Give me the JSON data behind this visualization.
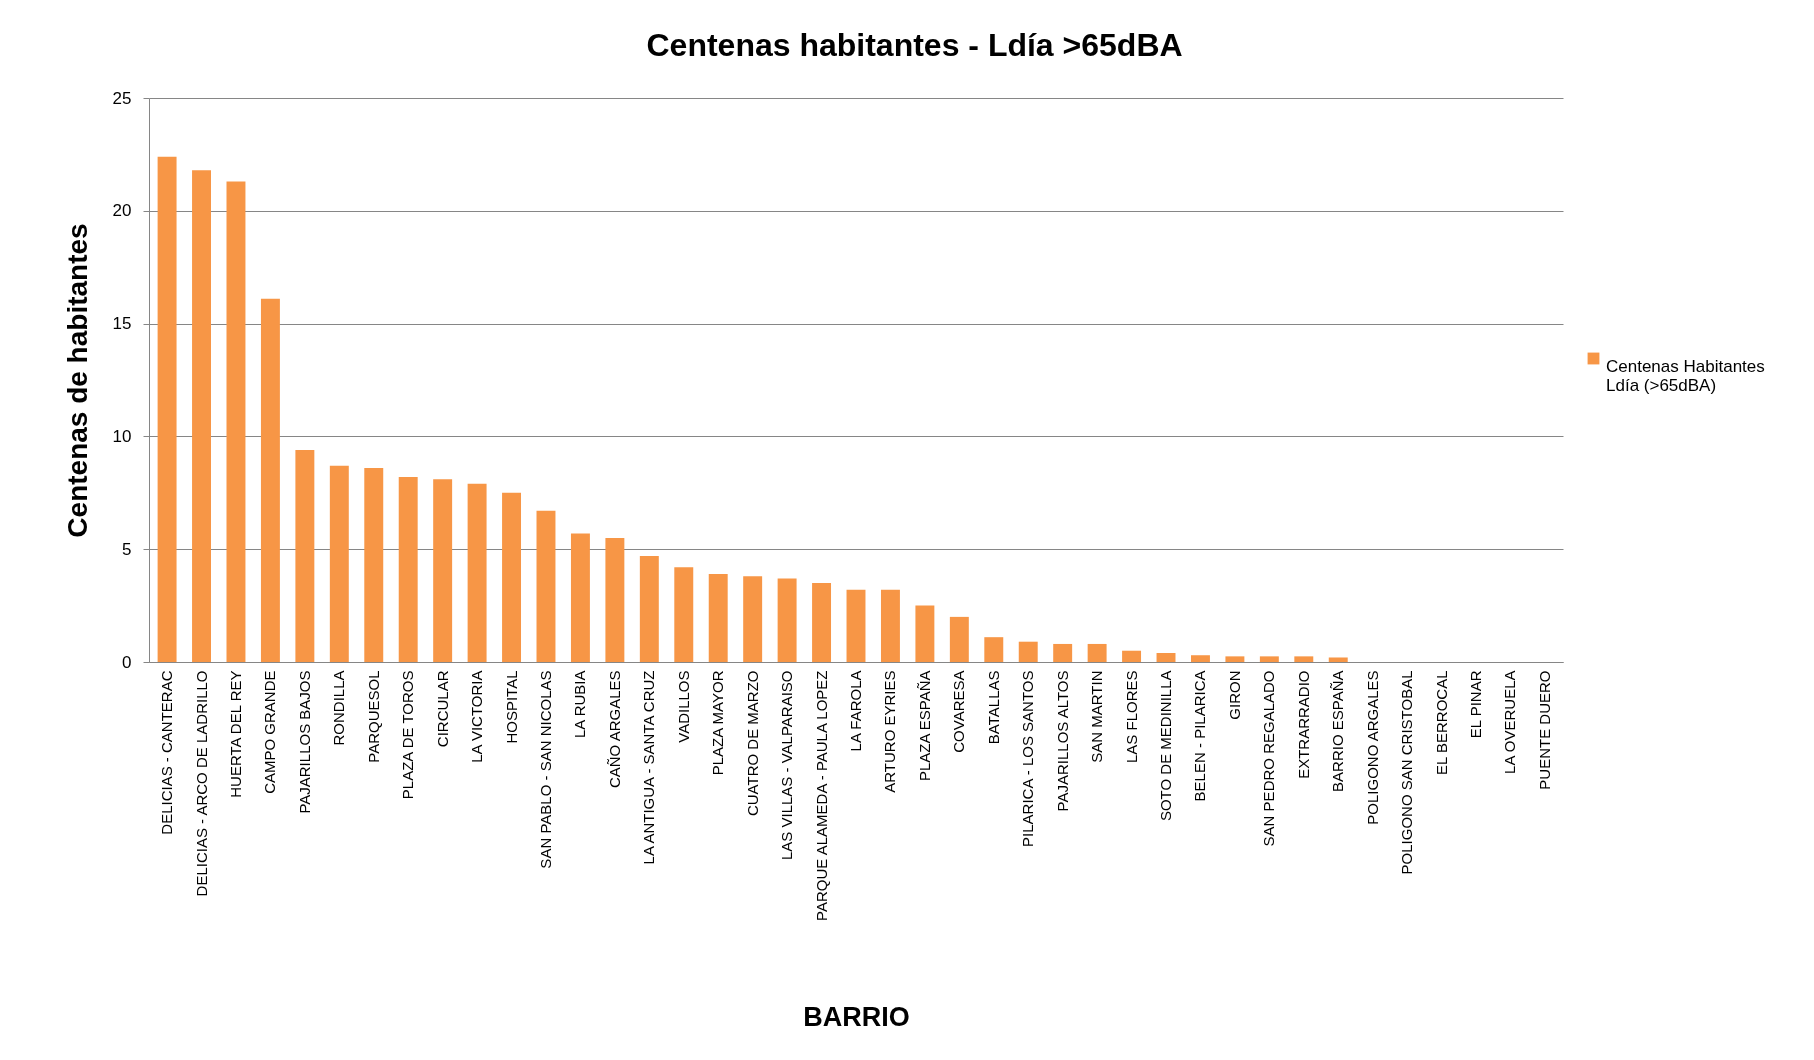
{
  "chart_data": {
    "type": "bar",
    "title": "Centenas habitantes - Ldía >65dBA",
    "xlabel": "BARRIO",
    "ylabel": "Centenas de habitantes",
    "categories": [
      "DELICIAS - CANTERAC",
      "DELICIAS - ARCO DE LADRILLO",
      "HUERTA DEL REY",
      "CAMPO GRANDE",
      "PAJARILLOS BAJOS",
      "RONDILLA",
      "PARQUESOL",
      "PLAZA DE TOROS",
      "CIRCULAR",
      "LA VICTORIA",
      "HOSPITAL",
      "SAN PABLO - SAN NICOLAS",
      "LA RUBIA",
      "CAÑO ARGALES",
      "LA ANTIGUA - SANTA CRUZ",
      "VADILLOS",
      "PLAZA MAYOR",
      "CUATRO DE MARZO",
      "LAS VILLAS - VALPARAISO",
      "PARQUE ALAMEDA - PAULA LOPEZ",
      "LA FAROLA",
      "ARTURO EYRIES",
      "PLAZA ESPAÑA",
      "COVARESA",
      "BATALLAS",
      "PILARICA - LOS SANTOS",
      "PAJARILLOS ALTOS",
      "SAN MARTIN",
      "LAS FLORES",
      "SOTO DE MEDINILLA",
      "BELEN - PILARICA",
      "GIRON",
      "SAN PEDRO REGALADO",
      "EXTRARRADIO",
      "BARRIO ESPAÑA",
      "POLIGONO ARGALES",
      "POLIGONO SAN CRISTOBAL",
      "EL BERROCAL",
      "EL PINAR",
      "LA OVERUELA",
      "PUENTE DUERO"
    ],
    "series": [
      {
        "name": "Centenas Habitantes Ldía (>65dBA)",
        "color": "#f79646",
        "values": [
          22.4,
          21.8,
          21.3,
          16.1,
          9.4,
          8.7,
          8.6,
          8.2,
          8.1,
          7.9,
          7.5,
          6.7,
          5.7,
          5.5,
          4.7,
          4.2,
          3.9,
          3.8,
          3.7,
          3.5,
          3.2,
          3.2,
          2.5,
          2.0,
          1.1,
          0.9,
          0.8,
          0.8,
          0.5,
          0.4,
          0.3,
          0.25,
          0.25,
          0.25,
          0.2,
          0,
          0,
          0,
          0,
          0,
          0
        ]
      }
    ],
    "ylim": [
      0,
      25
    ],
    "yticks": [
      0,
      5,
      10,
      15,
      20,
      25
    ],
    "grid": "y",
    "legend": "right"
  }
}
